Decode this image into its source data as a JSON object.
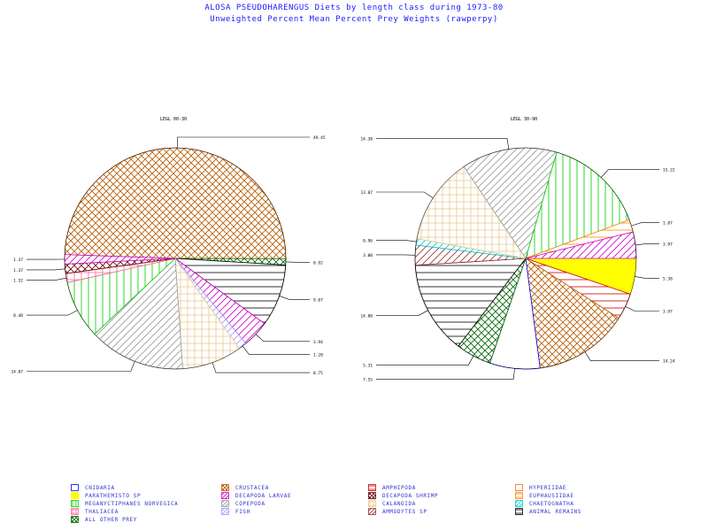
{
  "title_line1": "ALOSA PSEUDOHARENGUS Diets by length class during 1973-80",
  "title_line2": "Unweighted Percent Mean Percent Prey Weights (rawperpy)",
  "colors": {
    "title": "#1a1aff",
    "text": "#000000",
    "outline": "#000000"
  },
  "categories": [
    {
      "key": "cnidaria",
      "name": "CNIDARIA",
      "color": "#0000ff",
      "pattern": "none"
    },
    {
      "key": "crustacea",
      "name": "CRUSTACEA",
      "color": "#b85c00",
      "pattern": "crosshatch"
    },
    {
      "key": "amphipoda",
      "name": "AMPHIPODA",
      "color": "#cc0000",
      "pattern": "horizontal"
    },
    {
      "key": "hyperiidae",
      "name": "HYPERIIDAE",
      "color": "#ff6600",
      "pattern": "none"
    },
    {
      "key": "parathemisto",
      "name": "PARATHEMISTO SP",
      "color": "#ffff00",
      "pattern": "solid"
    },
    {
      "key": "decapoda_larvae",
      "name": "DECAPODA LARVAE",
      "color": "#cc00cc",
      "pattern": "diagonal"
    },
    {
      "key": "decapoda_shrimp",
      "name": "DECAPODA SHRIMP",
      "color": "#660000",
      "pattern": "crosshatch"
    },
    {
      "key": "euphausiidae",
      "name": "EUPHAUSIIDAE",
      "color": "#ff8800",
      "pattern": "horizontal"
    },
    {
      "key": "meganyctiphanes",
      "name": "MEGANYCTIPHANES NORVEGICA",
      "color": "#00cc00",
      "pattern": "vertical"
    },
    {
      "key": "copepoda",
      "name": "COPEPODA",
      "color": "#999999",
      "pattern": "diagonal"
    },
    {
      "key": "calanoida",
      "name": "CALANOIDA",
      "color": "#e8c890",
      "pattern": "grid"
    },
    {
      "key": "chaetognatha",
      "name": "CHAETOGNATHA",
      "color": "#00cccc",
      "pattern": "diagonal"
    },
    {
      "key": "thaliacea",
      "name": "THALIACEA",
      "color": "#ff6699",
      "pattern": "grid"
    },
    {
      "key": "fish",
      "name": "FISH",
      "color": "#9999ff",
      "pattern": "diagonal"
    },
    {
      "key": "ammodytes",
      "name": "AMMODYTES SP",
      "color": "#993333",
      "pattern": "diagonal"
    },
    {
      "key": "animal_remains",
      "name": "ANIMAL REMAINS",
      "color": "#000000",
      "pattern": "horizontal"
    },
    {
      "key": "all_other",
      "name": "ALL OTHER PREY",
      "color": "#006600",
      "pattern": "crosshatch"
    }
  ],
  "chart_data": [
    {
      "type": "pie",
      "title": "LEGL 00-30",
      "slices": [
        {
          "category": "crustacea",
          "value": 49.45,
          "label": "49.45"
        },
        {
          "category": "all_other",
          "value": 0.92,
          "label": "0.92"
        },
        {
          "category": "animal_remains",
          "value": 9.07,
          "label": "9.07"
        },
        {
          "category": "decapoda_larvae",
          "value": 3.94,
          "label": "3.94"
        },
        {
          "category": "fish",
          "value": 1.2,
          "label": "1.20"
        },
        {
          "category": "calanoida",
          "value": 8.75,
          "label": "8.75"
        },
        {
          "category": "copepoda",
          "value": 14.07,
          "label": "14.07"
        },
        {
          "category": "meganyctiphanes",
          "value": 8.48,
          "label": "8.48"
        },
        {
          "category": "thaliacea",
          "value": 1.32,
          "label": "1.32"
        },
        {
          "category": "decapoda_shrimp",
          "value": 1.37,
          "label": "1.37"
        },
        {
          "category": "decapoda_larvae",
          "value": 1.37,
          "label": "1.37"
        }
      ]
    },
    {
      "type": "pie",
      "title": "LEGL 30-90",
      "slices": [
        {
          "category": "parathemisto",
          "value": 5.38,
          "label": "5.38"
        },
        {
          "category": "amphipoda",
          "value": 3.97,
          "label": "3.97"
        },
        {
          "category": "crustacea",
          "value": 14.24,
          "label": "14.24"
        },
        {
          "category": "cnidaria",
          "value": 7.55,
          "label": "7.55"
        },
        {
          "category": "all_other",
          "value": 5.31,
          "label": "5.31"
        },
        {
          "category": "animal_remains",
          "value": 14.0,
          "label": "14.00"
        },
        {
          "category": "ammodytes",
          "value": 3.0,
          "label": "3.00"
        },
        {
          "category": "chaetognatha",
          "value": 0.96,
          "label": "0.96"
        },
        {
          "category": "calanoida",
          "value": 13.07,
          "label": "13.07"
        },
        {
          "category": "copepoda",
          "value": 14.38,
          "label": "14.38"
        },
        {
          "category": "meganyctiphanes",
          "value": 15.22,
          "label": "15.22"
        },
        {
          "category": "euphausiidae",
          "value": 1.87,
          "label": "1.87"
        },
        {
          "category": "decapoda_larvae",
          "value": 3.97,
          "label": "3.97"
        }
      ]
    }
  ]
}
